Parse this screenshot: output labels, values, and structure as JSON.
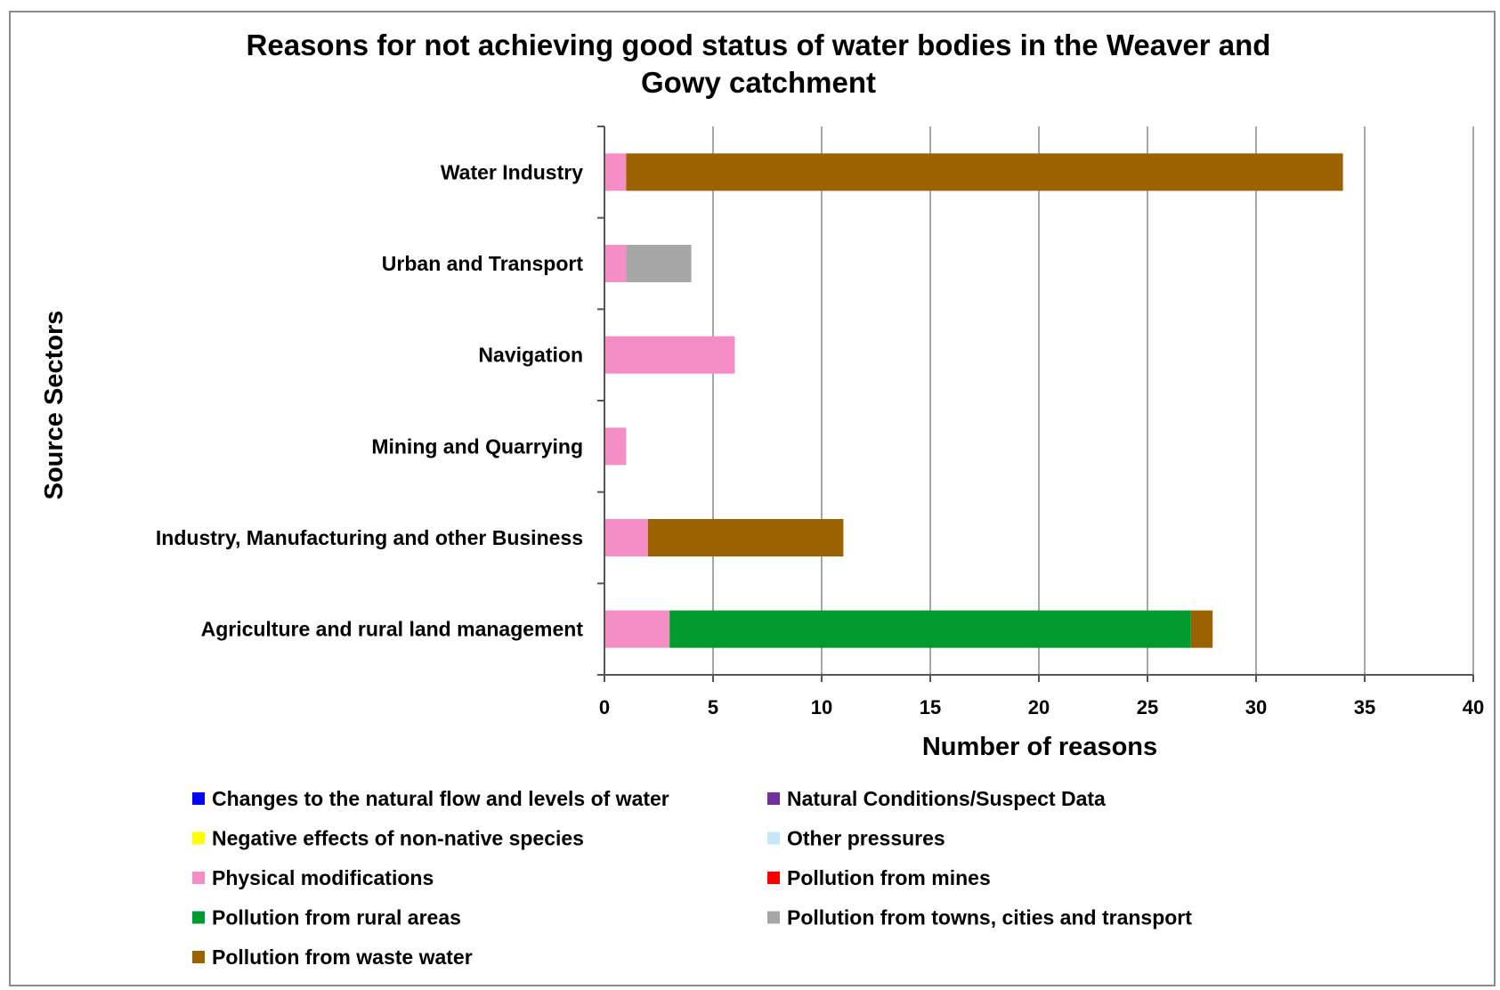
{
  "chart_data": {
    "type": "bar",
    "orientation": "horizontal",
    "stacked": true,
    "title": [
      "Reasons for not achieving good status of water bodies in the Weaver and",
      "Gowy catchment"
    ],
    "ylabel": "Source Sectors",
    "xlabel": "Number of reasons",
    "xlim": [
      0,
      40
    ],
    "xticks": [
      "0",
      "5",
      "10",
      "15",
      "20",
      "25",
      "30",
      "35",
      "40"
    ],
    "grid": true,
    "legend_position": "bottom",
    "categories": [
      "Water Industry",
      "Urban and Transport",
      "Navigation",
      "Mining and Quarrying",
      "Industry, Manufacturing and other Business",
      "Agriculture and rural land management"
    ],
    "series": [
      {
        "name": "Changes to the natural flow and levels of water",
        "color": "#0000ff",
        "values": [
          0,
          0,
          0,
          0,
          0,
          0
        ]
      },
      {
        "name": "Natural Conditions/Suspect Data",
        "color": "#7030a0",
        "values": [
          0,
          0,
          0,
          0,
          0,
          0
        ]
      },
      {
        "name": "Negative effects of non-native species",
        "color": "#ffff00",
        "values": [
          0,
          0,
          0,
          0,
          0,
          0
        ]
      },
      {
        "name": "Other pressures",
        "color": "#c6e7f5",
        "values": [
          0,
          0,
          0,
          0,
          0,
          0
        ]
      },
      {
        "name": "Physical modifications",
        "color": "#f58dc6",
        "values": [
          1,
          1,
          6,
          1,
          2,
          3
        ]
      },
      {
        "name": "Pollution from mines",
        "color": "#ff0000",
        "values": [
          0,
          0,
          0,
          0,
          0,
          0
        ]
      },
      {
        "name": "Pollution from rural areas",
        "color": "#009a2e",
        "values": [
          0,
          0,
          0,
          0,
          0,
          24
        ]
      },
      {
        "name": "Pollution from towns, cities and transport",
        "color": "#a6a6a6",
        "values": [
          0,
          3,
          0,
          0,
          0,
          0
        ]
      },
      {
        "name": "Pollution from waste water",
        "color": "#9c6200",
        "values": [
          33,
          0,
          0,
          0,
          9,
          1
        ]
      }
    ]
  }
}
